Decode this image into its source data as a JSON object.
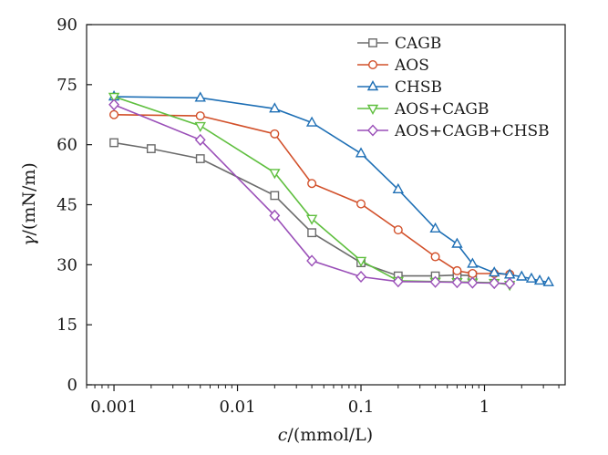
{
  "chart_data": {
    "type": "line",
    "title": "",
    "xlabel_var": "c",
    "xlabel_unit": "/(mmol/L)",
    "ylabel_var": "γ",
    "ylabel_unit": "/(mN/m)",
    "xscale": "log",
    "xlim": [
      0.0006,
      4.5
    ],
    "ylim": [
      0,
      90
    ],
    "xticks": [
      0.001,
      0.01,
      0.1,
      1
    ],
    "xtick_labels": [
      "0.001",
      "0.01",
      "0.1",
      "1"
    ],
    "yticks": [
      0,
      15,
      30,
      45,
      60,
      75,
      90
    ],
    "ytick_labels": [
      "0",
      "15",
      "30",
      "45",
      "60",
      "75",
      "90"
    ],
    "grid": false,
    "legend_position": "top-right",
    "series": [
      {
        "name": "CAGB",
        "color": "#6b6b6b",
        "marker": "square",
        "points": [
          [
            0.001,
            60.5
          ],
          [
            0.002,
            59.0
          ],
          [
            0.005,
            56.5
          ],
          [
            0.02,
            47.3
          ],
          [
            0.04,
            38.0
          ],
          [
            0.1,
            30.5
          ],
          [
            0.2,
            27.2
          ],
          [
            0.4,
            27.2
          ],
          [
            0.6,
            27.4
          ],
          [
            0.8,
            27.3
          ]
        ]
      },
      {
        "name": "AOS",
        "color": "#d2502a",
        "marker": "circle",
        "points": [
          [
            0.001,
            67.5
          ],
          [
            0.005,
            67.2
          ],
          [
            0.02,
            62.7
          ],
          [
            0.04,
            50.3
          ],
          [
            0.1,
            45.2
          ],
          [
            0.2,
            38.7
          ],
          [
            0.4,
            32.0
          ],
          [
            0.6,
            28.5
          ],
          [
            0.8,
            27.8
          ],
          [
            1.2,
            27.8
          ],
          [
            1.6,
            27.6
          ]
        ]
      },
      {
        "name": "CHSB",
        "color": "#1e6fb5",
        "marker": "triangle-up",
        "points": [
          [
            0.001,
            72.0
          ],
          [
            0.005,
            71.7
          ],
          [
            0.02,
            69.0
          ],
          [
            0.04,
            65.5
          ],
          [
            0.1,
            57.8
          ],
          [
            0.2,
            48.8
          ],
          [
            0.4,
            39.0
          ],
          [
            0.6,
            35.2
          ],
          [
            0.8,
            30.2
          ],
          [
            1.2,
            28.0
          ],
          [
            1.6,
            27.5
          ],
          [
            2.0,
            27.0
          ],
          [
            2.4,
            26.5
          ],
          [
            2.8,
            26.0
          ],
          [
            3.3,
            25.6
          ]
        ]
      },
      {
        "name": "AOS+CAGB",
        "color": "#5fbf3f",
        "marker": "triangle-down",
        "points": [
          [
            0.001,
            72.0
          ],
          [
            0.005,
            64.7
          ],
          [
            0.02,
            53.0
          ],
          [
            0.04,
            41.5
          ],
          [
            0.1,
            31.0
          ],
          [
            0.2,
            26.0
          ],
          [
            0.4,
            25.8
          ],
          [
            0.6,
            25.7
          ],
          [
            0.8,
            25.6
          ],
          [
            1.2,
            25.5
          ],
          [
            1.6,
            25.0
          ]
        ]
      },
      {
        "name": "AOS+CAGB+CHSB",
        "color": "#9a4fb8",
        "marker": "diamond",
        "points": [
          [
            0.001,
            70.0
          ],
          [
            0.005,
            61.2
          ],
          [
            0.02,
            42.3
          ],
          [
            0.04,
            31.0
          ],
          [
            0.1,
            27.0
          ],
          [
            0.2,
            25.8
          ],
          [
            0.4,
            25.7
          ],
          [
            0.6,
            25.6
          ],
          [
            0.8,
            25.5
          ],
          [
            1.2,
            25.4
          ],
          [
            1.6,
            25.3
          ]
        ]
      }
    ]
  }
}
